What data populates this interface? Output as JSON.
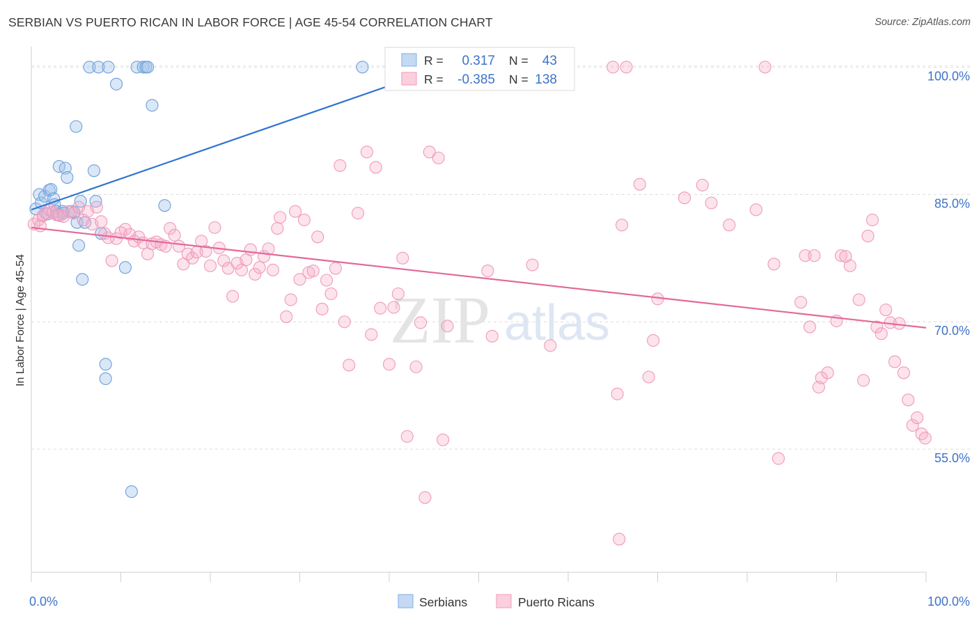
{
  "header": {
    "title": "SERBIAN VS PUERTO RICAN IN LABOR FORCE | AGE 45-54 CORRELATION CHART",
    "source": "Source: ZipAtlas.com"
  },
  "watermark": {
    "zip": "ZIP",
    "atlas": "atlas"
  },
  "colors": {
    "serbians": "#90b8e8",
    "serbians_line": "#2f74d0",
    "puerto_ricans": "#f4a6c0",
    "puerto_ricans_line": "#e3689a",
    "value_text": "#3d72c9"
  },
  "stats": {
    "r_label": "R =",
    "n_label": "N =",
    "serbians": {
      "r": "0.317",
      "n": "43"
    },
    "puerto_ricans": {
      "r": "-0.385",
      "n": "138"
    }
  },
  "chart_data": {
    "type": "scatter",
    "title": "SERBIAN VS PUERTO RICAN IN LABOR FORCE | AGE 45-54 CORRELATION CHART",
    "xlabel": "",
    "ylabel": "In Labor Force | Age 45-54",
    "xlim": [
      0,
      100
    ],
    "ylim": [
      40.5,
      102
    ],
    "x_tick_labels": [
      "0.0%",
      "100.0%"
    ],
    "y_ticks": [
      55,
      70,
      85,
      100
    ],
    "y_tick_labels": [
      "55.0%",
      "70.0%",
      "85.0%",
      "100.0%"
    ],
    "legend": [
      "Serbians",
      "Puerto Ricans"
    ],
    "series": [
      {
        "name": "Serbians",
        "r": 0.317,
        "n": 43,
        "trend": {
          "x": [
            0,
            46
          ],
          "y": [
            83.2,
            100.0
          ]
        },
        "points": [
          [
            0.5,
            83.3
          ],
          [
            0.9,
            85.0
          ],
          [
            1.1,
            84.0
          ],
          [
            1.3,
            82.5
          ],
          [
            1.5,
            84.8
          ],
          [
            1.8,
            82.7
          ],
          [
            2.0,
            85.5
          ],
          [
            2.2,
            85.6
          ],
          [
            2.5,
            84.5
          ],
          [
            2.6,
            83.8
          ],
          [
            2.8,
            83.0
          ],
          [
            3.0,
            82.6
          ],
          [
            3.1,
            88.3
          ],
          [
            3.5,
            83.0
          ],
          [
            3.6,
            82.8
          ],
          [
            3.8,
            88.1
          ],
          [
            4.0,
            87.0
          ],
          [
            4.5,
            83.0
          ],
          [
            4.8,
            82.9
          ],
          [
            5.0,
            93.0
          ],
          [
            5.1,
            81.7
          ],
          [
            5.3,
            79.0
          ],
          [
            5.5,
            84.2
          ],
          [
            5.7,
            75.0
          ],
          [
            6.0,
            81.7
          ],
          [
            6.5,
            100.0
          ],
          [
            7.0,
            87.8
          ],
          [
            7.2,
            84.2
          ],
          [
            7.5,
            100.0
          ],
          [
            7.8,
            80.4
          ],
          [
            8.3,
            65.0
          ],
          [
            8.3,
            63.3
          ],
          [
            8.6,
            100.0
          ],
          [
            9.5,
            98.0
          ],
          [
            10.5,
            76.4
          ],
          [
            11.2,
            50.0
          ],
          [
            11.8,
            100.0
          ],
          [
            12.5,
            100.0
          ],
          [
            12.8,
            100.0
          ],
          [
            13.0,
            100.0
          ],
          [
            13.5,
            95.5
          ],
          [
            14.9,
            83.7
          ],
          [
            37.0,
            100.0
          ]
        ]
      },
      {
        "name": "Puerto Ricans",
        "r": -0.385,
        "n": 138,
        "trend": {
          "x": [
            0,
            100
          ],
          "y": [
            81.1,
            69.3
          ]
        },
        "points": [
          [
            0.3,
            81.5
          ],
          [
            0.8,
            82.0
          ],
          [
            1.0,
            81.3
          ],
          [
            1.3,
            82.5
          ],
          [
            1.6,
            82.8
          ],
          [
            2.0,
            83.2
          ],
          [
            2.4,
            82.9
          ],
          [
            2.8,
            82.6
          ],
          [
            3.2,
            82.5
          ],
          [
            3.6,
            82.4
          ],
          [
            4.2,
            83.0
          ],
          [
            4.7,
            82.8
          ],
          [
            5.3,
            83.5
          ],
          [
            5.8,
            82.0
          ],
          [
            6.3,
            83.0
          ],
          [
            6.8,
            81.5
          ],
          [
            7.3,
            83.5
          ],
          [
            7.8,
            81.8
          ],
          [
            8.2,
            80.4
          ],
          [
            8.6,
            79.9
          ],
          [
            9.0,
            77.2
          ],
          [
            9.5,
            79.8
          ],
          [
            10.0,
            80.5
          ],
          [
            10.5,
            80.9
          ],
          [
            11.0,
            80.3
          ],
          [
            11.5,
            79.5
          ],
          [
            12.0,
            80.0
          ],
          [
            12.5,
            79.3
          ],
          [
            13.0,
            78.0
          ],
          [
            13.5,
            79.2
          ],
          [
            14.0,
            79.4
          ],
          [
            14.5,
            79.1
          ],
          [
            15.0,
            78.9
          ],
          [
            15.5,
            81.0
          ],
          [
            16.0,
            80.2
          ],
          [
            16.5,
            78.9
          ],
          [
            17.0,
            76.8
          ],
          [
            17.5,
            78.0
          ],
          [
            18.0,
            77.5
          ],
          [
            18.5,
            78.2
          ],
          [
            19.0,
            79.5
          ],
          [
            19.5,
            78.3
          ],
          [
            20.0,
            76.6
          ],
          [
            20.5,
            81.1
          ],
          [
            21.0,
            78.7
          ],
          [
            21.5,
            77.2
          ],
          [
            22.0,
            76.3
          ],
          [
            22.5,
            73.0
          ],
          [
            23.0,
            76.9
          ],
          [
            23.5,
            76.1
          ],
          [
            24.0,
            77.3
          ],
          [
            24.5,
            78.5
          ],
          [
            25.0,
            75.6
          ],
          [
            25.5,
            76.4
          ],
          [
            26.0,
            77.7
          ],
          [
            26.5,
            78.6
          ],
          [
            27.0,
            76.1
          ],
          [
            27.5,
            81.0
          ],
          [
            27.8,
            82.3
          ],
          [
            28.5,
            70.6
          ],
          [
            29.0,
            72.6
          ],
          [
            29.5,
            83.0
          ],
          [
            30.0,
            75.0
          ],
          [
            30.5,
            82.0
          ],
          [
            31.0,
            75.8
          ],
          [
            31.5,
            76.0
          ],
          [
            32.0,
            80.0
          ],
          [
            32.5,
            71.5
          ],
          [
            33.0,
            74.9
          ],
          [
            33.5,
            73.3
          ],
          [
            34.0,
            76.3
          ],
          [
            34.5,
            88.4
          ],
          [
            35.0,
            70.0
          ],
          [
            35.5,
            64.9
          ],
          [
            36.5,
            82.8
          ],
          [
            37.5,
            90.0
          ],
          [
            38.0,
            68.5
          ],
          [
            38.5,
            88.2
          ],
          [
            39.0,
            71.6
          ],
          [
            40.0,
            65.0
          ],
          [
            40.5,
            71.7
          ],
          [
            41.0,
            73.3
          ],
          [
            41.5,
            77.5
          ],
          [
            42.0,
            56.5
          ],
          [
            43.0,
            64.7
          ],
          [
            43.5,
            69.9
          ],
          [
            44.0,
            49.3
          ],
          [
            44.5,
            90.0
          ],
          [
            45.5,
            89.3
          ],
          [
            46.0,
            56.1
          ],
          [
            46.5,
            69.5
          ],
          [
            47.0,
            100.0
          ],
          [
            51.0,
            76.0
          ],
          [
            51.5,
            68.3
          ],
          [
            56.0,
            76.7
          ],
          [
            58.0,
            67.2
          ],
          [
            65.0,
            100.0
          ],
          [
            65.5,
            61.5
          ],
          [
            65.7,
            44.4
          ],
          [
            66.0,
            81.4
          ],
          [
            66.5,
            100.0
          ],
          [
            68.0,
            86.2
          ],
          [
            69.0,
            63.5
          ],
          [
            69.5,
            67.8
          ],
          [
            70.0,
            72.7
          ],
          [
            73.0,
            84.6
          ],
          [
            75.0,
            86.1
          ],
          [
            76.0,
            84.0
          ],
          [
            78.0,
            81.4
          ],
          [
            81.0,
            83.2
          ],
          [
            82.0,
            100.0
          ],
          [
            83.0,
            76.8
          ],
          [
            83.5,
            53.9
          ],
          [
            86.0,
            72.3
          ],
          [
            86.5,
            77.8
          ],
          [
            87.0,
            69.4
          ],
          [
            87.5,
            77.8
          ],
          [
            88.0,
            62.3
          ],
          [
            88.3,
            63.4
          ],
          [
            89.0,
            64.0
          ],
          [
            90.0,
            70.1
          ],
          [
            90.5,
            77.8
          ],
          [
            91.0,
            77.7
          ],
          [
            91.5,
            76.6
          ],
          [
            92.5,
            72.6
          ],
          [
            93.0,
            63.1
          ],
          [
            93.5,
            80.1
          ],
          [
            94.0,
            82.0
          ],
          [
            94.5,
            69.4
          ],
          [
            95.0,
            68.6
          ],
          [
            95.5,
            71.4
          ],
          [
            96.0,
            69.9
          ],
          [
            96.5,
            65.3
          ],
          [
            97.0,
            69.8
          ],
          [
            97.5,
            64.0
          ],
          [
            98.0,
            60.8
          ],
          [
            98.5,
            57.8
          ],
          [
            99.0,
            58.7
          ],
          [
            99.5,
            56.8
          ],
          [
            99.9,
            56.3
          ]
        ]
      }
    ]
  }
}
